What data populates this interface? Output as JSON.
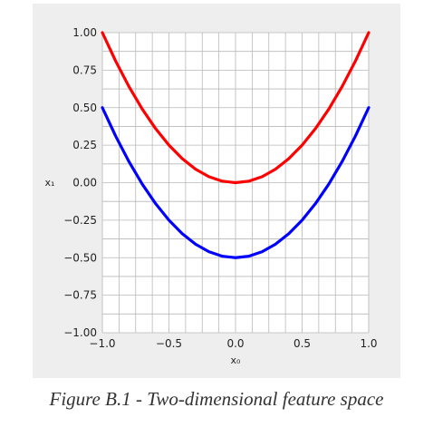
{
  "chart_data": {
    "type": "line",
    "title": "",
    "xlabel": "x₀",
    "ylabel": "x₁",
    "xlim": [
      -1.0,
      1.0
    ],
    "ylim": [
      -1.0,
      1.0
    ],
    "grid": true,
    "x_ticks": [
      -1.0,
      -0.5,
      0.0,
      0.5,
      1.0
    ],
    "y_ticks": [
      -1.0,
      -0.75,
      -0.5,
      -0.25,
      0.0,
      0.25,
      0.5,
      0.75,
      1.0
    ],
    "x_tick_labels": [
      "−1.0",
      "−0.5",
      "0.0",
      "0.5",
      "1.0"
    ],
    "y_tick_labels": [
      "−1.00",
      "−0.75",
      "−0.50",
      "−0.25",
      "0.00",
      "0.25",
      "0.50",
      "0.75",
      "1.00"
    ],
    "series": [
      {
        "color": "#ff0000",
        "x": [
          -1.0,
          -0.9,
          -0.8,
          -0.7,
          -0.6,
          -0.5,
          -0.4,
          -0.3,
          -0.2,
          -0.1,
          0.0,
          0.1,
          0.2,
          0.3,
          0.4,
          0.5,
          0.6,
          0.7,
          0.8,
          0.9,
          1.0
        ],
        "y": [
          1.0,
          0.81,
          0.64,
          0.49,
          0.36,
          0.25,
          0.16,
          0.09,
          0.04,
          0.01,
          0.0,
          0.01,
          0.04,
          0.09,
          0.16,
          0.25,
          0.36,
          0.49,
          0.64,
          0.81,
          1.0
        ]
      },
      {
        "color": "#0000ff",
        "x": [
          -1.0,
          -0.9,
          -0.8,
          -0.7,
          -0.6,
          -0.5,
          -0.4,
          -0.3,
          -0.2,
          -0.1,
          0.0,
          0.1,
          0.2,
          0.3,
          0.4,
          0.5,
          0.6,
          0.7,
          0.8,
          0.9,
          1.0
        ],
        "y": [
          0.5,
          0.31,
          0.14,
          -0.01,
          -0.14,
          -0.25,
          -0.34,
          -0.41,
          -0.46,
          -0.49,
          -0.5,
          -0.49,
          -0.46,
          -0.41,
          -0.34,
          -0.25,
          -0.14,
          -0.01,
          0.14,
          0.31,
          0.5
        ]
      }
    ]
  },
  "caption": "Figure B.1 - Two-dimensional feature space"
}
